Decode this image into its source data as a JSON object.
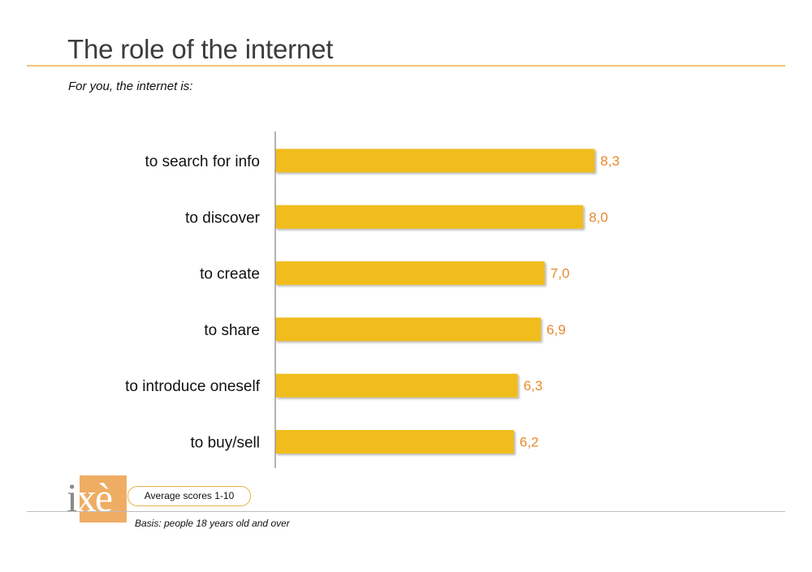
{
  "title": "The role of the internet",
  "subtitle": "For you, the internet is:",
  "colors": {
    "bar": "#f0bd1a",
    "value_label": "#e8892d",
    "rule": "#f2c376"
  },
  "logo": {
    "text_before": "i",
    "text_after": "xè"
  },
  "footer": {
    "note": "Average scores 1-10",
    "basis": "Basis: people 18 years old and over"
  },
  "chart_data": {
    "type": "bar",
    "orientation": "horizontal",
    "categories": [
      "to search for info",
      "to discover",
      "to create",
      "to share",
      "to introduce oneself",
      "to buy/sell"
    ],
    "values": [
      8.3,
      8.0,
      7.0,
      6.9,
      6.3,
      6.2
    ],
    "value_labels": [
      "8,3",
      "8,0",
      "7,0",
      "6,9",
      "6,3",
      "6,2"
    ],
    "xlim": [
      0,
      10
    ],
    "grid": false,
    "legend": "none"
  }
}
